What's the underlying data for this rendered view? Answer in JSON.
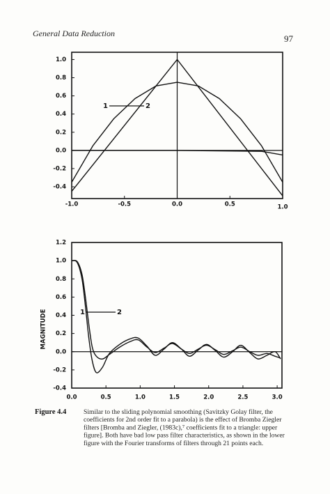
{
  "header": {
    "title": "General Data Reduction",
    "page_number": "97"
  },
  "chart_data": [
    {
      "type": "line",
      "color": "#111111",
      "xlim": [
        -1,
        1
      ],
      "ylim": [
        -0.53,
        1.08
      ],
      "xticks": [
        {
          "value": -1,
          "label": "-1.0"
        },
        -0.5,
        {
          "value": 0,
          "label": "0.0"
        },
        0.5,
        {
          "value": 1,
          "label": "1.0"
        }
      ],
      "yticks": [
        {
          "value": 1,
          "label": "1.0"
        },
        0.8,
        0.6,
        0.4,
        0.2,
        {
          "value": 0,
          "label": "0.0"
        },
        -0.2,
        -0.4
      ],
      "annotations": [
        "1",
        "2"
      ],
      "series": [
        {
          "color": "#111111",
          "x": [
            -1,
            0,
            1
          ],
          "values": [
            -0.45,
            1.0,
            -0.5
          ]
        },
        {
          "color": "#111111",
          "x": [
            -1,
            -0.8,
            -0.6,
            -0.4,
            -0.2,
            0,
            0.2,
            0.4,
            0.6,
            0.8,
            1
          ],
          "values": [
            -0.35,
            0.05,
            0.35,
            0.57,
            0.71,
            0.75,
            0.71,
            0.57,
            0.35,
            0.05,
            -0.35
          ]
        },
        {
          "color": "#111111",
          "x": [
            -1,
            0,
            0.8,
            1
          ],
          "values": [
            0.0,
            0.0,
            -0.01,
            -0.05
          ]
        }
      ]
    },
    {
      "type": "line",
      "color": "#111111",
      "smooth": true,
      "ylabel": "MAGNITUDE",
      "xlim": [
        0,
        3.07
      ],
      "ylim": [
        -0.4,
        1.2
      ],
      "xticks": [
        {
          "value": 0,
          "label": "0.0"
        },
        0.5,
        {
          "value": 1,
          "label": "1.0"
        },
        1.5,
        {
          "value": 2,
          "label": "2.0"
        },
        2.5,
        {
          "value": 3,
          "label": "3.0"
        }
      ],
      "yticks": [
        1.2,
        {
          "value": 1,
          "label": "1.0"
        },
        0.8,
        0.6,
        0.4,
        0.2,
        {
          "value": 0,
          "label": "0.0"
        },
        -0.2,
        -0.4
      ],
      "annotations": [
        "1",
        "2"
      ],
      "x": [
        0,
        0.08,
        0.15,
        0.2,
        0.25,
        0.3,
        0.36,
        0.45,
        0.55,
        0.7,
        0.85,
        0.97,
        1.1,
        1.22,
        1.35,
        1.47,
        1.6,
        1.72,
        1.85,
        1.97,
        2.1,
        2.22,
        2.35,
        2.47,
        2.6,
        2.72,
        2.85,
        2.97,
        3.05
      ],
      "series": [
        {
          "color": "#111111",
          "values": [
            1.0,
            0.98,
            0.8,
            0.5,
            0.15,
            -0.1,
            -0.23,
            -0.17,
            -0.02,
            0.08,
            0.14,
            0.15,
            0.06,
            -0.04,
            0.03,
            0.1,
            0.03,
            -0.05,
            0.02,
            0.08,
            0.01,
            -0.06,
            0.0,
            0.07,
            -0.01,
            -0.08,
            -0.04,
            0.0,
            -0.08
          ]
        },
        {
          "color": "#111111",
          "values": [
            1.0,
            0.99,
            0.85,
            0.6,
            0.3,
            0.05,
            -0.05,
            -0.08,
            -0.03,
            0.05,
            0.11,
            0.13,
            0.05,
            -0.01,
            0.04,
            0.09,
            0.03,
            -0.02,
            0.03,
            0.07,
            0.02,
            -0.03,
            0.01,
            0.05,
            0.0,
            -0.04,
            -0.02,
            -0.05,
            -0.07
          ]
        }
      ]
    }
  ],
  "caption": {
    "label": "Figure 4.4",
    "lines": [
      "Similar to the sliding polynomial smoothing (Savitzky Golay filter, the",
      "coefficients for 2nd order fit to a parabola) is the effect of Bromba Ziegler",
      "filters [Bromba and Ziegler, (1983c),⁷ coefficients fit to a triangle: upper",
      "figure]. Both have bad low pass filter characteristics, as shown in the lower",
      "figure with the Fourier transforms of filters through 21 points each."
    ]
  }
}
